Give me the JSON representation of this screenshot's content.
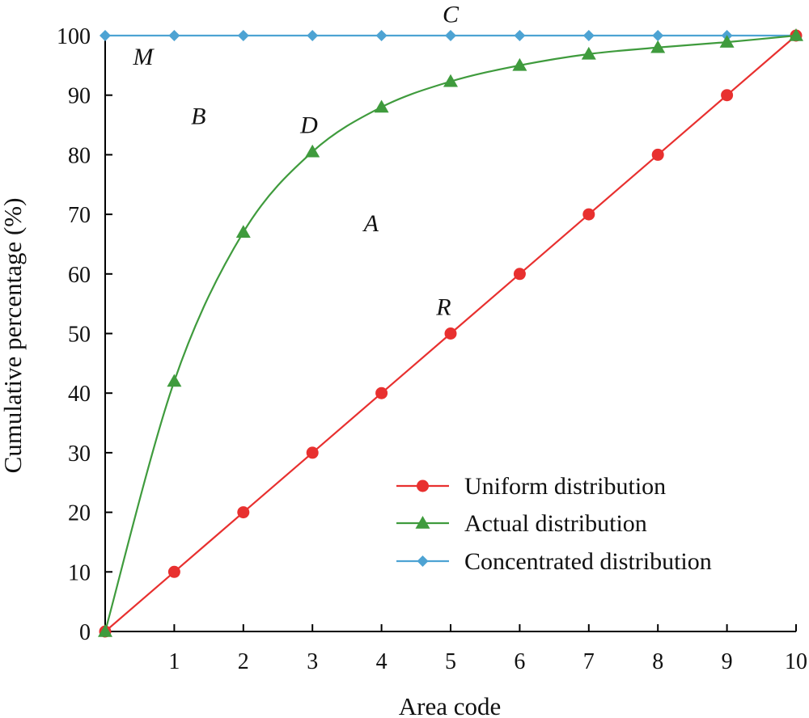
{
  "chart_data": {
    "type": "line",
    "title": "",
    "xlabel": "Area code",
    "ylabel": "Cumulative percentage (%)",
    "xlim": [
      0,
      10
    ],
    "ylim": [
      0,
      100
    ],
    "x_ticks": [
      1,
      2,
      3,
      4,
      5,
      6,
      7,
      8,
      9,
      10
    ],
    "y_ticks": [
      0,
      10,
      20,
      30,
      40,
      50,
      60,
      70,
      80,
      90,
      100
    ],
    "x": [
      0,
      1,
      2,
      3,
      4,
      5,
      6,
      7,
      8,
      9,
      10
    ],
    "grid": false,
    "legend_position": "bottom-right",
    "series": [
      {
        "name": "Uniform distribution",
        "values": [
          0,
          10,
          20,
          30,
          40,
          50,
          60,
          70,
          80,
          90,
          100
        ],
        "color": "#e8302f",
        "marker": "circle"
      },
      {
        "name": "Actual distribution",
        "values": [
          0,
          42,
          67,
          80.5,
          88,
          92.3,
          95,
          96.9,
          98,
          98.9,
          100
        ],
        "color": "#3f9b3d",
        "marker": "triangle"
      },
      {
        "name": "Concentrated distribution",
        "values": [
          100,
          100,
          100,
          100,
          100,
          100,
          100,
          100,
          100,
          100,
          100
        ],
        "color": "#4da3d3",
        "marker": "diamond"
      }
    ],
    "annotations": [
      {
        "text": "C",
        "x": 5,
        "y": 103.6
      },
      {
        "text": "M",
        "x": 0.55,
        "y": 96.5
      },
      {
        "text": "B",
        "x": 1.35,
        "y": 86.5
      },
      {
        "text": "D",
        "x": 2.95,
        "y": 85
      },
      {
        "text": "A",
        "x": 3.85,
        "y": 68.5
      },
      {
        "text": "R",
        "x": 4.9,
        "y": 54.5
      }
    ]
  }
}
